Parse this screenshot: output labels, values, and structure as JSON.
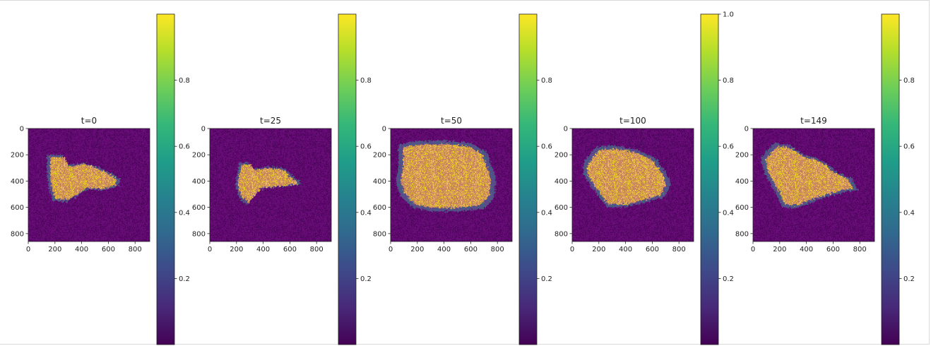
{
  "colors": {
    "background": "#440154",
    "foreground": "#fde725",
    "viridis": [
      "#440154",
      "#482878",
      "#3e4989",
      "#31688e",
      "#26828e",
      "#1f9e89",
      "#35b779",
      "#6ece58",
      "#b5de2b",
      "#fde725"
    ]
  },
  "chart_data": [
    {
      "type": "heatmap",
      "title": "t=0",
      "xticks": [
        0,
        200,
        400,
        600,
        800
      ],
      "yticks": [
        0,
        200,
        400,
        600,
        800
      ],
      "xlim": [
        0,
        910
      ],
      "ylim": [
        860,
        0
      ],
      "colorbar": {
        "ticks": [
          0.2,
          0.4,
          0.6,
          0.8
        ],
        "labels": [
          "0.2",
          "0.4",
          "0.6",
          "0.8"
        ],
        "range": [
          0,
          1
        ]
      },
      "description_values": {
        "region_center": [
          420,
          390
        ],
        "region_extent_x": [
          140,
          690
        ],
        "region_extent_y": [
          190,
          560
        ]
      }
    },
    {
      "type": "heatmap",
      "title": "t=25",
      "xticks": [
        0,
        200,
        400,
        600,
        800
      ],
      "yticks": [
        0,
        200,
        400,
        600,
        800
      ],
      "xlim": [
        0,
        910
      ],
      "ylim": [
        860,
        0
      ],
      "colorbar": {
        "ticks": [
          0.2,
          0.4,
          0.6,
          0.8
        ],
        "labels": [
          "0.2",
          "0.4",
          "0.6",
          "0.8"
        ],
        "range": [
          0,
          1
        ]
      },
      "description_values": {
        "region_center": [
          400,
          390
        ],
        "region_extent_x": [
          170,
          690
        ],
        "region_extent_y": [
          260,
          580
        ]
      }
    },
    {
      "type": "heatmap",
      "title": "t=50",
      "xticks": [
        0,
        200,
        400,
        600,
        800
      ],
      "yticks": [
        0,
        200,
        400,
        600,
        800
      ],
      "xlim": [
        0,
        910
      ],
      "ylim": [
        860,
        0
      ],
      "colorbar": {
        "ticks": [
          0.2,
          0.4,
          0.6,
          0.8
        ],
        "labels": [
          "0.2",
          "0.4",
          "0.6",
          "0.8"
        ],
        "range": [
          0,
          1
        ]
      },
      "description_values": {
        "region_center": [
          410,
          400
        ],
        "region_extent_x": [
          40,
          790
        ],
        "region_extent_y": [
          90,
          630
        ]
      }
    },
    {
      "type": "heatmap",
      "title": "t=100",
      "xticks": [
        0,
        200,
        400,
        600,
        800
      ],
      "yticks": [
        0,
        200,
        400,
        600,
        800
      ],
      "xlim": [
        0,
        910
      ],
      "ylim": [
        860,
        0
      ],
      "colorbar": {
        "ticks": [
          0.2,
          0.4,
          0.6,
          0.8,
          1.0
        ],
        "labels": [
          "0.2",
          "0.4",
          "0.6",
          "0.8",
          "1.0"
        ],
        "range": [
          0,
          1
        ]
      },
      "description_values": {
        "region_center": [
          420,
          380
        ],
        "region_extent_x": [
          60,
          740
        ],
        "region_extent_y": [
          130,
          610
        ]
      }
    },
    {
      "type": "heatmap",
      "title": "t=149",
      "xticks": [
        0,
        200,
        400,
        600,
        800
      ],
      "yticks": [
        0,
        200,
        400,
        600,
        800
      ],
      "xlim": [
        0,
        910
      ],
      "ylim": [
        860,
        0
      ],
      "colorbar": {
        "ticks": [
          0.2,
          0.4,
          0.6,
          0.8
        ],
        "labels": [
          "0.2",
          "0.4",
          "0.6",
          "0.8"
        ],
        "range": [
          0,
          1
        ]
      },
      "description_values": {
        "region_center": [
          430,
          380
        ],
        "region_extent_x": [
          40,
          790
        ],
        "region_extent_y": [
          100,
          620
        ]
      }
    }
  ]
}
